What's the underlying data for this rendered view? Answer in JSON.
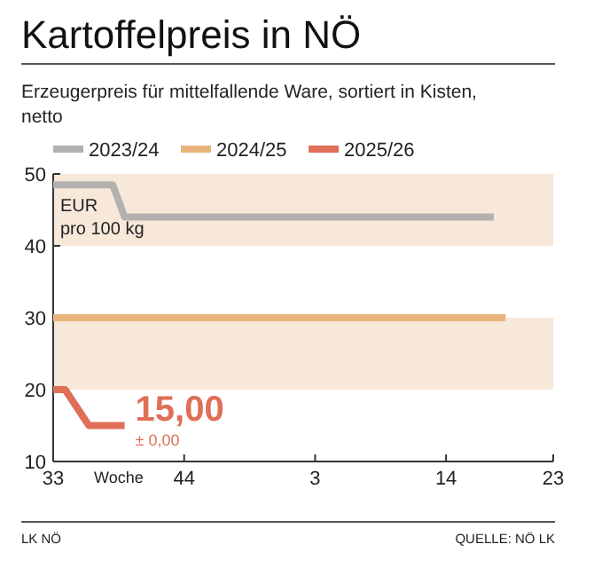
{
  "chart_data": {
    "type": "line",
    "title": "Kartoffelpreis in NÖ",
    "subtitle": "Erzeugerpreis für mittelfallende Ware, sortiert in Kisten, netto",
    "xlabel": "Woche",
    "ylabel": "EUR\npro 100 kg",
    "categories": [
      "33",
      null,
      null,
      null,
      null,
      null,
      null,
      null,
      null,
      null,
      null,
      "44",
      null,
      null,
      null,
      null,
      null,
      null,
      null,
      null,
      null,
      null,
      "3",
      null,
      null,
      null,
      null,
      null,
      null,
      null,
      null,
      null,
      null,
      "14",
      null,
      null,
      null,
      null,
      null,
      null,
      null,
      null,
      "23"
    ],
    "series": [
      {
        "name": "2023/24",
        "color": "#b3b1b0",
        "values": [
          48.5,
          48.5,
          48.5,
          48.5,
          48.5,
          48.5,
          44,
          44,
          44,
          44,
          44,
          44,
          44,
          44,
          44,
          44,
          44,
          44,
          44,
          44,
          44,
          44,
          44,
          44,
          44,
          44,
          44,
          44,
          44,
          44,
          44,
          44,
          44,
          44,
          44,
          44,
          44,
          44,
          null,
          null,
          null,
          null,
          null
        ]
      },
      {
        "name": "2024/25",
        "color": "#e9b47c",
        "values": [
          30,
          30,
          30,
          30,
          30,
          30,
          30,
          30,
          30,
          30,
          30,
          30,
          30,
          30,
          30,
          30,
          30,
          30,
          30,
          30,
          30,
          30,
          30,
          30,
          30,
          30,
          30,
          30,
          30,
          30,
          30,
          30,
          30,
          30,
          30,
          30,
          30,
          30,
          30,
          null,
          null,
          null,
          null
        ]
      },
      {
        "name": "2025/26",
        "color": "#df6f57",
        "values": [
          20,
          20,
          17.5,
          15,
          15,
          15,
          15,
          null,
          null,
          null,
          null,
          null,
          null,
          null,
          null,
          null,
          null,
          null,
          null,
          null,
          null,
          null,
          null,
          null,
          null,
          null,
          null,
          null,
          null,
          null,
          null,
          null,
          null,
          null,
          null,
          null,
          null,
          null,
          null,
          null,
          null,
          null,
          null
        ]
      }
    ],
    "ylim": [
      10,
      50
    ],
    "yticks": [
      10,
      20,
      30,
      40,
      50
    ],
    "bands": [
      {
        "axis": "y",
        "from": 40,
        "to": 50,
        "color": "#f7e8da"
      },
      {
        "axis": "y",
        "from": 20,
        "to": 30,
        "color": "#f7e8da"
      }
    ],
    "annotations": [
      "15,00",
      "± 0,00",
      "LK NÖ",
      "QUELLE: NÖ LK"
    ],
    "grid": false,
    "legend": "top",
    "marker": "none",
    "line_style": "solid"
  }
}
